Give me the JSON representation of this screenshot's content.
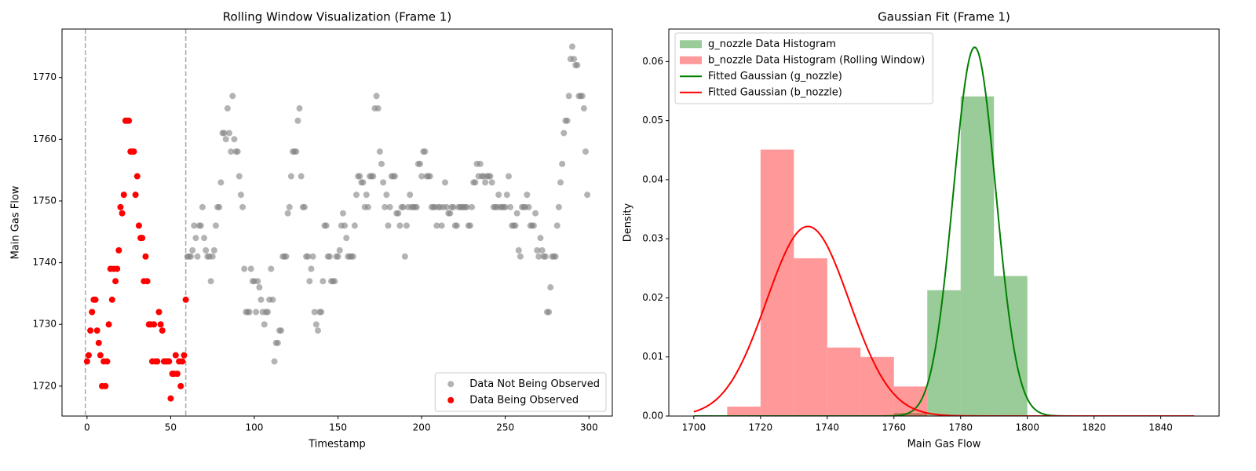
{
  "chart_data": [
    {
      "type": "scatter",
      "title": "Rolling Window Visualization (Frame 1)",
      "xlabel": "Timestamp",
      "ylabel": "Main Gas Flow",
      "xlim": [
        -14.95,
        313.95
      ],
      "ylim": [
        1715.15,
        1777.85
      ],
      "xticks": [
        0,
        50,
        100,
        150,
        200,
        250,
        300
      ],
      "yticks": [
        1720,
        1730,
        1740,
        1750,
        1760,
        1770
      ],
      "vlines": [
        -1,
        59
      ],
      "legend": "lower right",
      "series": [
        {
          "name": "Data Not Being Observed",
          "color": "gray",
          "alpha": 0.6,
          "x": [
            60,
            61,
            62,
            63,
            64,
            65,
            66,
            67,
            68,
            69,
            70,
            71,
            72,
            73,
            74,
            75,
            76,
            77,
            78,
            79,
            80,
            81,
            82,
            83,
            84,
            85,
            86,
            87,
            88,
            89,
            90,
            91,
            92,
            93,
            94,
            95,
            96,
            97,
            98,
            99,
            100,
            101,
            102,
            103,
            104,
            105,
            106,
            107,
            108,
            109,
            110,
            111,
            112,
            113,
            114,
            115,
            116,
            117,
            118,
            119,
            120,
            121,
            122,
            123,
            124,
            125,
            126,
            127,
            128,
            129,
            130,
            131,
            132,
            133,
            134,
            135,
            136,
            137,
            138,
            139,
            140,
            141,
            142,
            143,
            144,
            145,
            146,
            147,
            148,
            149,
            150,
            151,
            152,
            153,
            154,
            155,
            156,
            157,
            158,
            159,
            160,
            161,
            162,
            163,
            164,
            165,
            166,
            167,
            168,
            169,
            170,
            171,
            172,
            173,
            174,
            175,
            176,
            177,
            178,
            179,
            180,
            181,
            182,
            183,
            184,
            185,
            186,
            187,
            188,
            189,
            190,
            191,
            192,
            193,
            194,
            195,
            196,
            197,
            198,
            199,
            200,
            201,
            202,
            203,
            204,
            205,
            206,
            207,
            208,
            209,
            210,
            211,
            212,
            213,
            214,
            215,
            216,
            217,
            218,
            219,
            220,
            221,
            222,
            223,
            224,
            225,
            226,
            227,
            228,
            229,
            230,
            231,
            232,
            233,
            234,
            235,
            236,
            237,
            238,
            239,
            240,
            241,
            242,
            243,
            244,
            245,
            246,
            247,
            248,
            249,
            250,
            251,
            252,
            253,
            254,
            255,
            256,
            257,
            258,
            259,
            260,
            261,
            262,
            263,
            264,
            265,
            266,
            267,
            268,
            269,
            270,
            271,
            272,
            273,
            274,
            275,
            276,
            277,
            278,
            279,
            280,
            281,
            282,
            283,
            284,
            285,
            286,
            287,
            288,
            289,
            290,
            291,
            292,
            293,
            294,
            295,
            296,
            297,
            298,
            299
          ],
          "values": [
            1741,
            1741,
            1741,
            1742,
            1746,
            1744,
            1741,
            1746,
            1746,
            1749,
            1744,
            1742,
            1741,
            1741,
            1737,
            1741,
            1742,
            1746,
            1749,
            1749,
            1753,
            1761,
            1761,
            1760,
            1765,
            1761,
            1758,
            1767,
            1760,
            1758,
            1758,
            1754,
            1751,
            1749,
            1739,
            1732,
            1732,
            1732,
            1739,
            1737,
            1737,
            1732,
            1737,
            1736,
            1734,
            1732,
            1730,
            1732,
            1732,
            1734,
            1739,
            1734,
            1724,
            1727,
            1727,
            1729,
            1729,
            1741,
            1741,
            1741,
            1748,
            1749,
            1754,
            1758,
            1758,
            1758,
            1763,
            1765,
            1754,
            1749,
            1749,
            1741,
            1741,
            1737,
            1739,
            1741,
            1732,
            1730,
            1729,
            1732,
            1732,
            1737,
            1746,
            1746,
            1741,
            1741,
            1737,
            1737,
            1737,
            1741,
            1741,
            1742,
            1746,
            1748,
            1746,
            1744,
            1741,
            1741,
            1741,
            1741,
            1746,
            1751,
            1754,
            1754,
            1753,
            1753,
            1749,
            1751,
            1749,
            1754,
            1754,
            1754,
            1765,
            1767,
            1765,
            1758,
            1756,
            1753,
            1749,
            1751,
            1746,
            1749,
            1754,
            1754,
            1754,
            1748,
            1748,
            1746,
            1749,
            1749,
            1741,
            1746,
            1749,
            1751,
            1749,
            1749,
            1749,
            1749,
            1756,
            1756,
            1754,
            1758,
            1758,
            1754,
            1754,
            1754,
            1749,
            1749,
            1749,
            1746,
            1749,
            1749,
            1746,
            1749,
            1753,
            1749,
            1748,
            1748,
            1749,
            1749,
            1746,
            1746,
            1749,
            1749,
            1749,
            1749,
            1749,
            1749,
            1746,
            1746,
            1749,
            1753,
            1753,
            1756,
            1754,
            1756,
            1754,
            1754,
            1753,
            1754,
            1754,
            1754,
            1753,
            1749,
            1749,
            1749,
            1751,
            1749,
            1749,
            1749,
            1749,
            1751,
            1754,
            1749,
            1746,
            1746,
            1746,
            1748,
            1742,
            1741,
            1749,
            1749,
            1749,
            1751,
            1749,
            1746,
            1746,
            1746,
            1748,
            1742,
            1741,
            1744,
            1742,
            1741,
            1741,
            1732,
            1732,
            1736,
            1741,
            1741,
            1741,
            1746,
            1749,
            1753,
            1756,
            1761,
            1763,
            1763,
            1767,
            1773,
            1775,
            1773,
            1772,
            1772,
            1767,
            1767,
            1767,
            1765,
            1758,
            1751
          ]
        },
        {
          "name": "Data Being Observed",
          "color": "red",
          "alpha": 1,
          "x": [
            0,
            1,
            2,
            3,
            4,
            5,
            6,
            7,
            8,
            9,
            10,
            11,
            12,
            13,
            14,
            15,
            16,
            17,
            18,
            19,
            20,
            21,
            22,
            23,
            24,
            25,
            26,
            27,
            28,
            29,
            30,
            31,
            32,
            33,
            34,
            35,
            36,
            37,
            38,
            39,
            40,
            41,
            42,
            43,
            44,
            45,
            46,
            47,
            48,
            49,
            50,
            51,
            52,
            53,
            54,
            55,
            56,
            57,
            58,
            59
          ],
          "values": [
            1724,
            1725,
            1729,
            1732,
            1734,
            1734,
            1729,
            1727,
            1725,
            1720,
            1724,
            1720,
            1724,
            1730,
            1739,
            1734,
            1739,
            1737,
            1739,
            1742,
            1749,
            1748,
            1751,
            1763,
            1763,
            1763,
            1758,
            1758,
            1758,
            1751,
            1754,
            1746,
            1744,
            1744,
            1737,
            1741,
            1737,
            1730,
            1730,
            1724,
            1730,
            1724,
            1724,
            1732,
            1730,
            1729,
            1724,
            1724,
            1724,
            1724,
            1718,
            1722,
            1722,
            1725,
            1722,
            1724,
            1720,
            1724,
            1725,
            1734
          ]
        }
      ]
    },
    {
      "type": "hist",
      "title": "Gaussian Fit (Frame 1)",
      "xlabel": "Main Gas Flow",
      "ylabel": "Density",
      "xlim": [
        1692.5,
        1857.5
      ],
      "ylim": [
        0,
        0.0655
      ],
      "xticks": [
        1700,
        1720,
        1740,
        1760,
        1780,
        1800,
        1820,
        1840
      ],
      "yticks": [
        {
          "value": 0,
          "label": "0.00"
        },
        {
          "value": 0.01,
          "label": "0.01"
        },
        {
          "value": 0.02,
          "label": "0.02"
        },
        {
          "value": 0.03,
          "label": "0.03"
        },
        {
          "value": 0.04,
          "label": "0.04"
        },
        {
          "value": 0.05,
          "label": "0.05"
        },
        {
          "value": 0.06,
          "label": "0.06"
        }
      ],
      "legend": "upper left",
      "histograms": [
        {
          "name": "g_nozzle Data Histogram",
          "color": "green",
          "alpha": 0.4,
          "bins": [
            1760,
            1770,
            1780,
            1790,
            1800
          ],
          "values": [
            0.0005,
            0.0213,
            0.0541,
            0.0237
          ]
        },
        {
          "name": "b_nozzle Data Histogram (Rolling Window)",
          "color": "red",
          "alpha": 0.4,
          "bins": [
            1710,
            1720,
            1730,
            1740,
            1750,
            1760,
            1770
          ],
          "values": [
            0.0016,
            0.0451,
            0.0267,
            0.0116,
            0.01,
            0.005
          ]
        }
      ],
      "curves": [
        {
          "name": "Fitted Gaussian (g_nozzle)",
          "color": "green",
          "mean": 1784.2,
          "std": 6.39,
          "range": [
            1700,
            1850
          ]
        },
        {
          "name": "Fitted Gaussian (b_nozzle)",
          "color": "red",
          "mean": 1734.2,
          "std": 12.43,
          "range": [
            1700,
            1850
          ]
        }
      ]
    }
  ]
}
